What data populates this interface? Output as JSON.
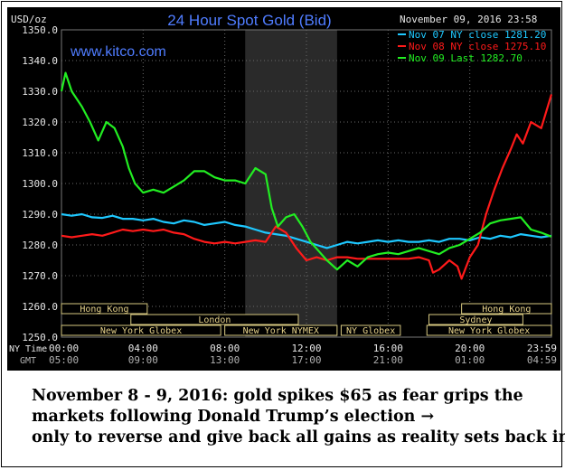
{
  "chart_data": {
    "type": "line",
    "title": "24 Hour Spot Gold (Bid)",
    "ylabel": "USD/oz",
    "watermark": "www.kitco.com",
    "timestamp": "November 09, 2016 23:58",
    "ylim": [
      1250,
      1350
    ],
    "yticks": [
      "1350.0",
      "1340.0",
      "1330.0",
      "1320.0",
      "1310.0",
      "1300.0",
      "1290.0",
      "1280.0",
      "1270.0",
      "1260.0",
      "1250.0"
    ],
    "xlim": [
      0,
      24
    ],
    "x_ny_ticks": [
      "00:00",
      "04:00",
      "08:00",
      "12:00",
      "16:00",
      "20:00",
      "23:59"
    ],
    "x_gmt_ticks": [
      "05:00",
      "09:00",
      "13:00",
      "17:00",
      "21:00",
      "01:00",
      "04:59"
    ],
    "x_row_labels": {
      "ny": "NY Time",
      "gmt": "GMT"
    },
    "shaded_region": [
      9,
      13.5
    ],
    "sessions_row1": [
      {
        "label": "Hong Kong",
        "start": 0,
        "end": 4.2
      },
      {
        "label": "Hong Kong",
        "start": 19.6,
        "end": 24
      }
    ],
    "sessions_row2": [
      {
        "label": "London",
        "start": 3.4,
        "end": 11.6
      },
      {
        "label": "Sydney",
        "start": 18,
        "end": 22.6
      }
    ],
    "sessions_row3": [
      {
        "label": "New York Globex",
        "start": 0,
        "end": 7.8
      },
      {
        "label": "New York NYMEX",
        "start": 8,
        "end": 13.5
      },
      {
        "label": "NY Globex",
        "start": 13.7,
        "end": 16.6
      },
      {
        "label": "New York Globex",
        "start": 17.9,
        "end": 24
      }
    ],
    "series": [
      {
        "name": "Nov 07 NY close 1281.20",
        "color": "#1ec8ff",
        "points": [
          [
            0,
            1290
          ],
          [
            0.5,
            1289.5
          ],
          [
            1,
            1290
          ],
          [
            1.5,
            1289
          ],
          [
            2,
            1288.8
          ],
          [
            2.5,
            1289.5
          ],
          [
            3,
            1288.5
          ],
          [
            3.5,
            1288.5
          ],
          [
            4,
            1288
          ],
          [
            4.5,
            1288.5
          ],
          [
            5,
            1287.5
          ],
          [
            5.5,
            1287
          ],
          [
            6,
            1288
          ],
          [
            6.5,
            1287.5
          ],
          [
            7,
            1286.5
          ],
          [
            7.5,
            1287
          ],
          [
            8,
            1287.5
          ],
          [
            8.5,
            1286.5
          ],
          [
            9,
            1286
          ],
          [
            9.5,
            1285
          ],
          [
            10,
            1284
          ],
          [
            10.5,
            1283.5
          ],
          [
            11,
            1283
          ],
          [
            11.5,
            1282
          ],
          [
            12,
            1281
          ],
          [
            12.5,
            1280
          ],
          [
            13,
            1279
          ],
          [
            13.5,
            1280
          ],
          [
            14,
            1281
          ],
          [
            14.5,
            1280.5
          ],
          [
            15,
            1281
          ],
          [
            15.5,
            1281.5
          ],
          [
            16,
            1281
          ],
          [
            16.5,
            1281.5
          ],
          [
            17,
            1281
          ],
          [
            17.5,
            1281
          ],
          [
            18,
            1281.5
          ],
          [
            18.5,
            1281
          ],
          [
            19,
            1282
          ],
          [
            19.5,
            1282
          ],
          [
            20,
            1281.5
          ],
          [
            20.5,
            1282.5
          ],
          [
            21,
            1282
          ],
          [
            21.5,
            1283
          ],
          [
            22,
            1282.5
          ],
          [
            22.5,
            1283.5
          ],
          [
            23,
            1283
          ],
          [
            23.5,
            1282.5
          ],
          [
            24,
            1283
          ]
        ]
      },
      {
        "name": "Nov 08 NY close 1275.10",
        "color": "#ff1a1a",
        "points": [
          [
            0,
            1283
          ],
          [
            0.5,
            1282.5
          ],
          [
            1,
            1283
          ],
          [
            1.5,
            1283.5
          ],
          [
            2,
            1283
          ],
          [
            2.5,
            1284
          ],
          [
            3,
            1285
          ],
          [
            3.5,
            1284.5
          ],
          [
            4,
            1285
          ],
          [
            4.5,
            1284.5
          ],
          [
            5,
            1285
          ],
          [
            5.5,
            1284
          ],
          [
            6,
            1283.5
          ],
          [
            6.5,
            1282
          ],
          [
            7,
            1281
          ],
          [
            7.5,
            1280.5
          ],
          [
            8,
            1281
          ],
          [
            8.5,
            1280.5
          ],
          [
            9,
            1281
          ],
          [
            9.5,
            1281.5
          ],
          [
            10,
            1281
          ],
          [
            10.5,
            1286
          ],
          [
            11,
            1284
          ],
          [
            11.5,
            1279
          ],
          [
            12,
            1275
          ],
          [
            12.5,
            1276
          ],
          [
            13,
            1275
          ],
          [
            13.5,
            1276
          ],
          [
            14,
            1276
          ],
          [
            14.5,
            1275.5
          ],
          [
            15,
            1275.5
          ],
          [
            16,
            1275.5
          ],
          [
            17,
            1275.5
          ],
          [
            17.5,
            1276
          ],
          [
            18,
            1275
          ],
          [
            18.2,
            1271
          ],
          [
            18.5,
            1272
          ],
          [
            19,
            1275
          ],
          [
            19.4,
            1273
          ],
          [
            19.6,
            1269
          ],
          [
            20,
            1276
          ],
          [
            20.4,
            1280
          ],
          [
            20.8,
            1290
          ],
          [
            21.2,
            1298
          ],
          [
            21.6,
            1305
          ],
          [
            22,
            1311
          ],
          [
            22.3,
            1316
          ],
          [
            22.6,
            1313
          ],
          [
            23,
            1320
          ],
          [
            23.5,
            1318
          ],
          [
            24,
            1329
          ]
        ]
      },
      {
        "name": "Nov 09 Last 1282.70",
        "color": "#22ee22",
        "points": [
          [
            0,
            1330
          ],
          [
            0.2,
            1336
          ],
          [
            0.5,
            1330
          ],
          [
            1,
            1325
          ],
          [
            1.4,
            1320
          ],
          [
            1.8,
            1314
          ],
          [
            2.2,
            1320
          ],
          [
            2.6,
            1318
          ],
          [
            3,
            1312
          ],
          [
            3.3,
            1305
          ],
          [
            3.6,
            1300
          ],
          [
            4,
            1297
          ],
          [
            4.5,
            1298
          ],
          [
            5,
            1297
          ],
          [
            5.5,
            1299
          ],
          [
            6,
            1301
          ],
          [
            6.5,
            1304
          ],
          [
            7,
            1304
          ],
          [
            7.5,
            1302
          ],
          [
            8,
            1301
          ],
          [
            8.5,
            1301
          ],
          [
            9,
            1300
          ],
          [
            9.5,
            1305
          ],
          [
            10,
            1303
          ],
          [
            10.3,
            1292
          ],
          [
            10.6,
            1286
          ],
          [
            11,
            1289
          ],
          [
            11.4,
            1290
          ],
          [
            11.8,
            1286
          ],
          [
            12.2,
            1281
          ],
          [
            12.6,
            1278
          ],
          [
            13,
            1275
          ],
          [
            13.5,
            1272
          ],
          [
            14,
            1275
          ],
          [
            14.5,
            1273
          ],
          [
            15,
            1276
          ],
          [
            15.5,
            1277
          ],
          [
            16,
            1277.5
          ],
          [
            16.5,
            1277
          ],
          [
            17,
            1278
          ],
          [
            17.5,
            1279
          ],
          [
            18,
            1278
          ],
          [
            18.5,
            1277
          ],
          [
            19,
            1279
          ],
          [
            19.5,
            1280
          ],
          [
            20,
            1282
          ],
          [
            20.5,
            1284
          ],
          [
            21,
            1287
          ],
          [
            21.5,
            1288
          ],
          [
            22,
            1288.5
          ],
          [
            22.5,
            1289
          ],
          [
            23,
            1285
          ],
          [
            23.5,
            1284
          ],
          [
            24,
            1282.7
          ]
        ]
      }
    ]
  },
  "caption": {
    "line1": "November 8 - 9, 2016: gold spikes $65 as fear grips the",
    "line2": "markets following Donald Trump’s election →",
    "line3": "only to reverse and give back all gains as reality sets back in."
  }
}
